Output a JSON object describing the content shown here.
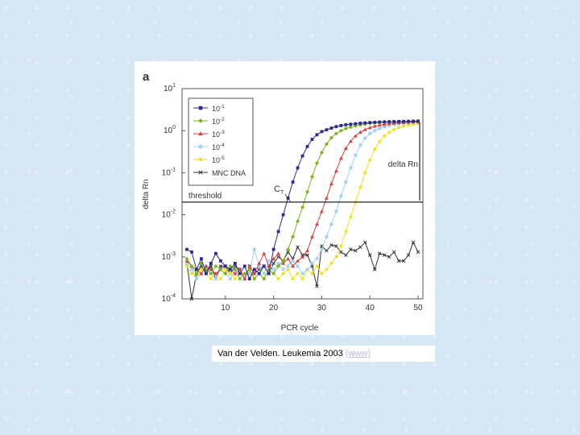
{
  "panel_letter": "a",
  "caption": {
    "text": "Van der Velden. Leukemia 2003",
    "link": "(www)"
  },
  "chart_data": {
    "type": "line",
    "title": "",
    "xlabel": "PCR cycle",
    "ylabel": "delta Rn",
    "x_scale": "linear",
    "y_scale": "log",
    "xlim": [
      1,
      51
    ],
    "ylim": [
      0.0001,
      10
    ],
    "x_ticks": [
      10,
      20,
      30,
      40,
      50
    ],
    "x_tick_labels": [
      "10",
      "20",
      "30",
      "40",
      "50"
    ],
    "y_ticks": [
      10,
      1,
      0.1,
      0.01,
      0.001,
      0.0001
    ],
    "y_tick_base": "10",
    "y_tick_exponents": [
      "1",
      "0",
      "-1",
      "-2",
      "-3",
      "-4"
    ],
    "threshold": {
      "value": 0.02,
      "label": "threshold"
    },
    "annotations": {
      "ct_main": "C",
      "ct_sub": "T",
      "delta_rn": "delta Rn"
    },
    "legend_position": "top-left",
    "series": [
      {
        "name": "10-1",
        "label_base": "10",
        "label_exp": "-1",
        "color": "#2e2a8c",
        "marker": "square",
        "x": [
          2,
          3,
          4,
          5,
          6,
          7,
          8,
          9,
          10,
          11,
          12,
          13,
          14,
          15,
          16,
          17,
          18,
          19,
          20,
          21,
          22,
          23,
          24,
          25,
          26,
          27,
          28,
          29,
          30,
          31,
          32,
          33,
          34,
          35,
          36,
          37,
          38,
          39,
          40,
          41,
          42,
          43,
          44,
          45,
          46,
          47,
          48,
          49,
          50
        ],
        "y": [
          0.0015,
          0.0013,
          0.0005,
          0.0009,
          0.0004,
          0.0007,
          0.0012,
          0.0008,
          0.0006,
          0.0005,
          0.0007,
          0.0004,
          0.0006,
          0.0003,
          0.0005,
          0.0004,
          0.0006,
          0.0004,
          0.0015,
          0.004,
          0.01,
          0.025,
          0.06,
          0.13,
          0.25,
          0.42,
          0.62,
          0.8,
          0.95,
          1.05,
          1.15,
          1.25,
          1.32,
          1.38,
          1.42,
          1.46,
          1.5,
          1.53,
          1.56,
          1.58,
          1.6,
          1.62,
          1.63,
          1.64,
          1.65,
          1.66,
          1.67,
          1.68,
          1.69
        ]
      },
      {
        "name": "10-2",
        "label_base": "10",
        "label_exp": "-2",
        "color": "#7ab51d",
        "marker": "diamond",
        "x": [
          2,
          3,
          4,
          5,
          6,
          7,
          8,
          9,
          10,
          11,
          12,
          13,
          14,
          15,
          16,
          17,
          18,
          19,
          20,
          21,
          22,
          23,
          24,
          25,
          26,
          27,
          28,
          29,
          30,
          31,
          32,
          33,
          34,
          35,
          36,
          37,
          38,
          39,
          40,
          41,
          42,
          43,
          44,
          45,
          46,
          47,
          48,
          49,
          50
        ],
        "y": [
          0.0009,
          0.0006,
          0.0004,
          0.0007,
          0.0005,
          0.0004,
          0.0006,
          0.0005,
          0.0004,
          0.0006,
          0.0005,
          0.0003,
          0.0004,
          0.0005,
          0.0003,
          0.0004,
          0.0003,
          0.0005,
          0.0004,
          0.0006,
          0.0008,
          0.0015,
          0.003,
          0.007,
          0.015,
          0.035,
          0.08,
          0.17,
          0.3,
          0.48,
          0.68,
          0.85,
          1.0,
          1.12,
          1.22,
          1.3,
          1.37,
          1.43,
          1.48,
          1.52,
          1.55,
          1.58,
          1.6,
          1.62,
          1.63,
          1.64,
          1.65,
          1.66,
          1.67
        ]
      },
      {
        "name": "10-3",
        "label_base": "10",
        "label_exp": "-3",
        "color": "#d0413f",
        "marker": "triangle",
        "x": [
          2,
          3,
          4,
          5,
          6,
          7,
          8,
          9,
          10,
          11,
          12,
          13,
          14,
          15,
          16,
          17,
          18,
          19,
          20,
          21,
          22,
          23,
          24,
          25,
          26,
          27,
          28,
          29,
          30,
          31,
          32,
          33,
          34,
          35,
          36,
          37,
          38,
          39,
          40,
          41,
          42,
          43,
          44,
          45,
          46,
          47,
          48,
          49,
          50
        ],
        "y": [
          0.0008,
          0.0006,
          0.0005,
          0.0004,
          0.0006,
          0.0005,
          0.0004,
          0.0005,
          0.0006,
          0.0005,
          0.0004,
          0.0005,
          0.0003,
          0.0006,
          0.0004,
          0.0007,
          0.0012,
          0.0006,
          0.0009,
          0.0012,
          0.0007,
          0.0009,
          0.0006,
          0.0008,
          0.001,
          0.0014,
          0.003,
          0.006,
          0.012,
          0.025,
          0.055,
          0.11,
          0.22,
          0.38,
          0.56,
          0.75,
          0.92,
          1.06,
          1.18,
          1.28,
          1.36,
          1.42,
          1.47,
          1.51,
          1.54,
          1.57,
          1.59,
          1.61,
          1.62
        ]
      },
      {
        "name": "10-4",
        "label_base": "10",
        "label_exp": "-4",
        "color": "#9fd3ef",
        "marker": "square",
        "x": [
          2,
          3,
          4,
          5,
          6,
          7,
          8,
          9,
          10,
          11,
          12,
          13,
          14,
          15,
          16,
          17,
          18,
          19,
          20,
          21,
          22,
          23,
          24,
          25,
          26,
          27,
          28,
          29,
          30,
          31,
          32,
          33,
          34,
          35,
          36,
          37,
          38,
          39,
          40,
          41,
          42,
          43,
          44,
          45,
          46,
          47,
          48,
          49,
          50
        ],
        "y": [
          0.0007,
          0.0005,
          0.0003,
          0.0004,
          0.0006,
          0.0004,
          0.0003,
          0.0005,
          0.0004,
          0.0003,
          0.0005,
          0.0004,
          0.0003,
          0.0004,
          0.0015,
          0.0006,
          0.0004,
          0.0008,
          0.0005,
          0.0007,
          0.0005,
          0.0006,
          0.0008,
          0.0006,
          0.0004,
          0.0005,
          0.0007,
          0.0009,
          0.0015,
          0.003,
          0.006,
          0.012,
          0.028,
          0.06,
          0.13,
          0.26,
          0.45,
          0.66,
          0.85,
          1.0,
          1.13,
          1.24,
          1.33,
          1.4,
          1.45,
          1.5,
          1.53,
          1.56,
          1.58
        ]
      },
      {
        "name": "10-5",
        "label_base": "10",
        "label_exp": "-5",
        "color": "#f2e020",
        "marker": "circle",
        "x": [
          2,
          3,
          4,
          5,
          6,
          7,
          8,
          9,
          10,
          11,
          12,
          13,
          14,
          15,
          16,
          17,
          18,
          19,
          20,
          21,
          22,
          23,
          24,
          25,
          26,
          27,
          28,
          29,
          30,
          31,
          32,
          33,
          34,
          35,
          36,
          37,
          38,
          39,
          40,
          41,
          42,
          43,
          44,
          45,
          46,
          47,
          48,
          49,
          50
        ],
        "y": [
          0.0006,
          0.0004,
          0.0003,
          0.0005,
          0.0004,
          0.0003,
          0.0004,
          0.0003,
          0.0005,
          0.0004,
          0.0003,
          0.0004,
          0.0003,
          0.0005,
          0.0003,
          0.0004,
          0.0003,
          0.0005,
          0.0004,
          0.0003,
          0.0004,
          0.0005,
          0.0003,
          0.0004,
          0.0003,
          0.0005,
          0.0004,
          0.0006,
          0.0004,
          0.0005,
          0.0007,
          0.001,
          0.0018,
          0.004,
          0.009,
          0.02,
          0.045,
          0.1,
          0.2,
          0.36,
          0.55,
          0.75,
          0.92,
          1.06,
          1.18,
          1.28,
          1.36,
          1.42,
          1.47
        ]
      },
      {
        "name": "MNC DNA",
        "label_base": "MNC DNA",
        "label_exp": "",
        "color": "#333333",
        "marker": "x",
        "x": [
          2,
          3,
          4,
          5,
          6,
          7,
          8,
          9,
          10,
          11,
          12,
          13,
          14,
          15,
          16,
          17,
          18,
          19,
          20,
          21,
          22,
          23,
          24,
          25,
          26,
          27,
          28,
          29,
          30,
          31,
          32,
          33,
          34,
          35,
          36,
          37,
          38,
          39,
          40,
          41,
          42,
          43,
          44,
          45,
          46,
          47,
          48,
          49,
          50
        ],
        "y": [
          0.0007,
          0.0001,
          0.0004,
          0.0006,
          0.0004,
          0.0006,
          0.0003,
          0.0006,
          0.0006,
          0.0004,
          0.0006,
          0.0005,
          0.0003,
          0.0006,
          0.0004,
          0.0005,
          0.0006,
          0.0004,
          0.0007,
          0.001,
          0.0008,
          0.0013,
          0.0009,
          0.0017,
          0.0011,
          0.0011,
          0.0006,
          0.0002,
          0.0018,
          0.0014,
          0.0019,
          0.0018,
          0.0013,
          0.0011,
          0.0015,
          0.0014,
          0.0017,
          0.0022,
          0.0011,
          0.0005,
          0.0012,
          0.0011,
          0.001,
          0.0013,
          0.0008,
          0.0008,
          0.0011,
          0.0022,
          0.0013
        ]
      }
    ]
  }
}
